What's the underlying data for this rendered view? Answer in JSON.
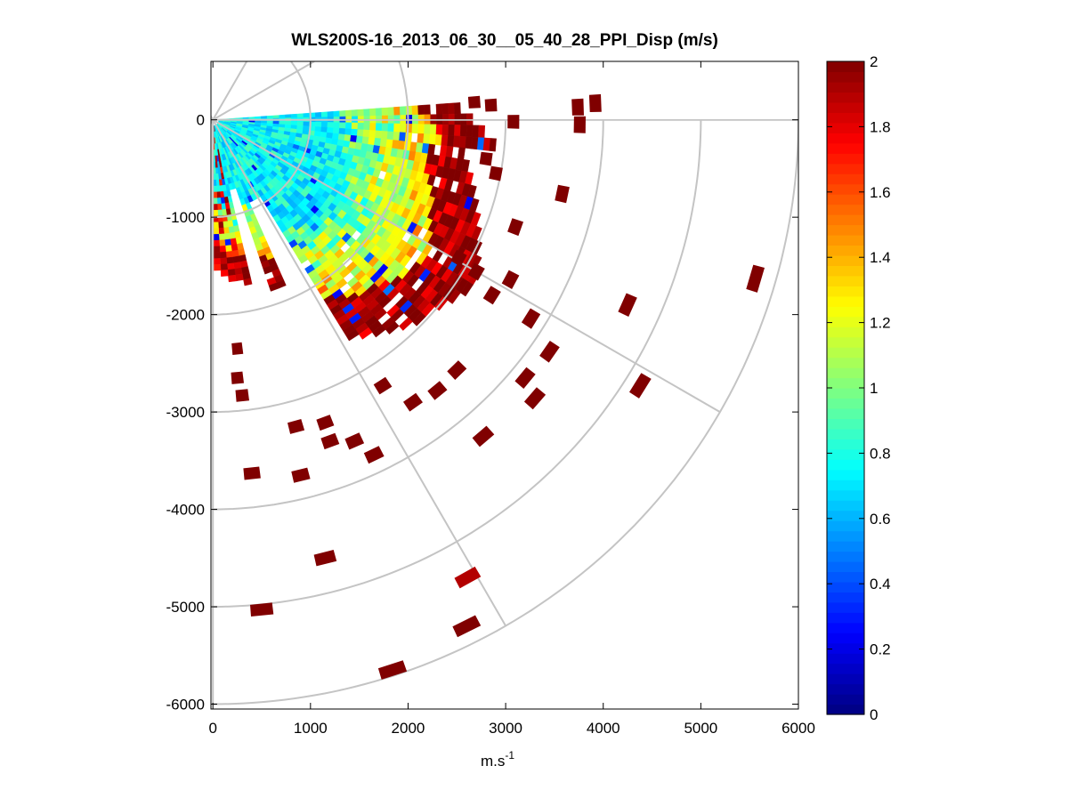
{
  "chart_data": {
    "type": "heatmap",
    "projection": "polar-ppi",
    "title": "WLS200S-16_2013_06_30__05_40_28_PPI_Disp (m/s)",
    "xlabel_base": "m.s",
    "xlabel_exponent": "-1",
    "ylabel": "",
    "xlim": [
      -20,
      6000
    ],
    "ylim": [
      -6050,
      600
    ],
    "x_ticks": [
      0,
      1000,
      2000,
      3000,
      4000,
      5000,
      6000
    ],
    "x_tick_labels": [
      "0",
      "1000",
      "2000",
      "3000",
      "4000",
      "5000",
      "6000"
    ],
    "y_ticks": [
      0,
      -1000,
      -2000,
      -3000,
      -4000,
      -5000,
      -6000
    ],
    "y_tick_labels": [
      "0",
      "-1000",
      "-2000",
      "-3000",
      "-4000",
      "-5000",
      "-6000"
    ],
    "grid": true,
    "polar_rings": [
      1000,
      2000,
      3000,
      4000,
      5000,
      6000
    ],
    "polar_spokes_deg": [
      0,
      30,
      60,
      90
    ],
    "sector_deg": [
      0,
      90
    ],
    "colorbar": {
      "colormap": "jet",
      "range": [
        0,
        2
      ],
      "ticks": [
        0,
        0.2,
        0.4,
        0.6,
        0.8,
        1,
        1.2,
        1.4,
        1.6,
        1.8,
        2
      ],
      "tick_labels": [
        "0",
        "0.2",
        "0.4",
        "0.6",
        "0.8",
        "1",
        "1.2",
        "1.4",
        "1.6",
        "1.8",
        "2"
      ]
    },
    "cells": [
      {
        "x": 2680,
        "y": 180,
        "v": 2
      },
      {
        "x": 2850,
        "y": 150,
        "v": 2
      },
      {
        "x": 3080,
        "y": -20,
        "v": 2
      },
      {
        "x": 3740,
        "y": 130,
        "v": 2
      },
      {
        "x": 3760,
        "y": -50,
        "v": 2
      },
      {
        "x": 3920,
        "y": 170,
        "v": 2
      },
      {
        "x": 2800,
        "y": -400,
        "v": 2
      },
      {
        "x": 2900,
        "y": -550,
        "v": 2
      },
      {
        "x": 3100,
        "y": -1100,
        "v": 2
      },
      {
        "x": 3580,
        "y": -760,
        "v": 2
      },
      {
        "x": 2520,
        "y": -1420,
        "v": 2
      },
      {
        "x": 2700,
        "y": -1560,
        "v": 2
      },
      {
        "x": 2860,
        "y": -1800,
        "v": 2
      },
      {
        "x": 3050,
        "y": -1640,
        "v": 2
      },
      {
        "x": 3260,
        "y": -2040,
        "v": 2
      },
      {
        "x": 3450,
        "y": -2380,
        "v": 2
      },
      {
        "x": 3200,
        "y": -2650,
        "v": 2
      },
      {
        "x": 3300,
        "y": -2860,
        "v": 2
      },
      {
        "x": 4250,
        "y": -1900,
        "v": 2
      },
      {
        "x": 4380,
        "y": -2730,
        "v": 2
      },
      {
        "x": 5560,
        "y": -1630,
        "v": 2
      },
      {
        "x": 2500,
        "y": -2570,
        "v": 2
      },
      {
        "x": 2300,
        "y": -2780,
        "v": 2
      },
      {
        "x": 2050,
        "y": -2900,
        "v": 2
      },
      {
        "x": 1740,
        "y": -2730,
        "v": 2
      },
      {
        "x": 1450,
        "y": -3300,
        "v": 2
      },
      {
        "x": 1200,
        "y": -3300,
        "v": 2
      },
      {
        "x": 1150,
        "y": -3110,
        "v": 2
      },
      {
        "x": 850,
        "y": -3150,
        "v": 2
      },
      {
        "x": 1650,
        "y": -3440,
        "v": 2
      },
      {
        "x": 2770,
        "y": -3250,
        "v": 2
      },
      {
        "x": 250,
        "y": -2350,
        "v": 2
      },
      {
        "x": 250,
        "y": -2650,
        "v": 2
      },
      {
        "x": 300,
        "y": -2830,
        "v": 2
      },
      {
        "x": 400,
        "y": -3630,
        "v": 2
      },
      {
        "x": 900,
        "y": -3650,
        "v": 2
      },
      {
        "x": 1150,
        "y": -4500,
        "v": 2
      },
      {
        "x": 500,
        "y": -5030,
        "v": 2
      },
      {
        "x": 1840,
        "y": -5650,
        "v": 2
      },
      {
        "x": 2600,
        "y": -5200,
        "v": 2
      },
      {
        "x": 2610,
        "y": -4700,
        "v": 1.9
      }
    ]
  }
}
